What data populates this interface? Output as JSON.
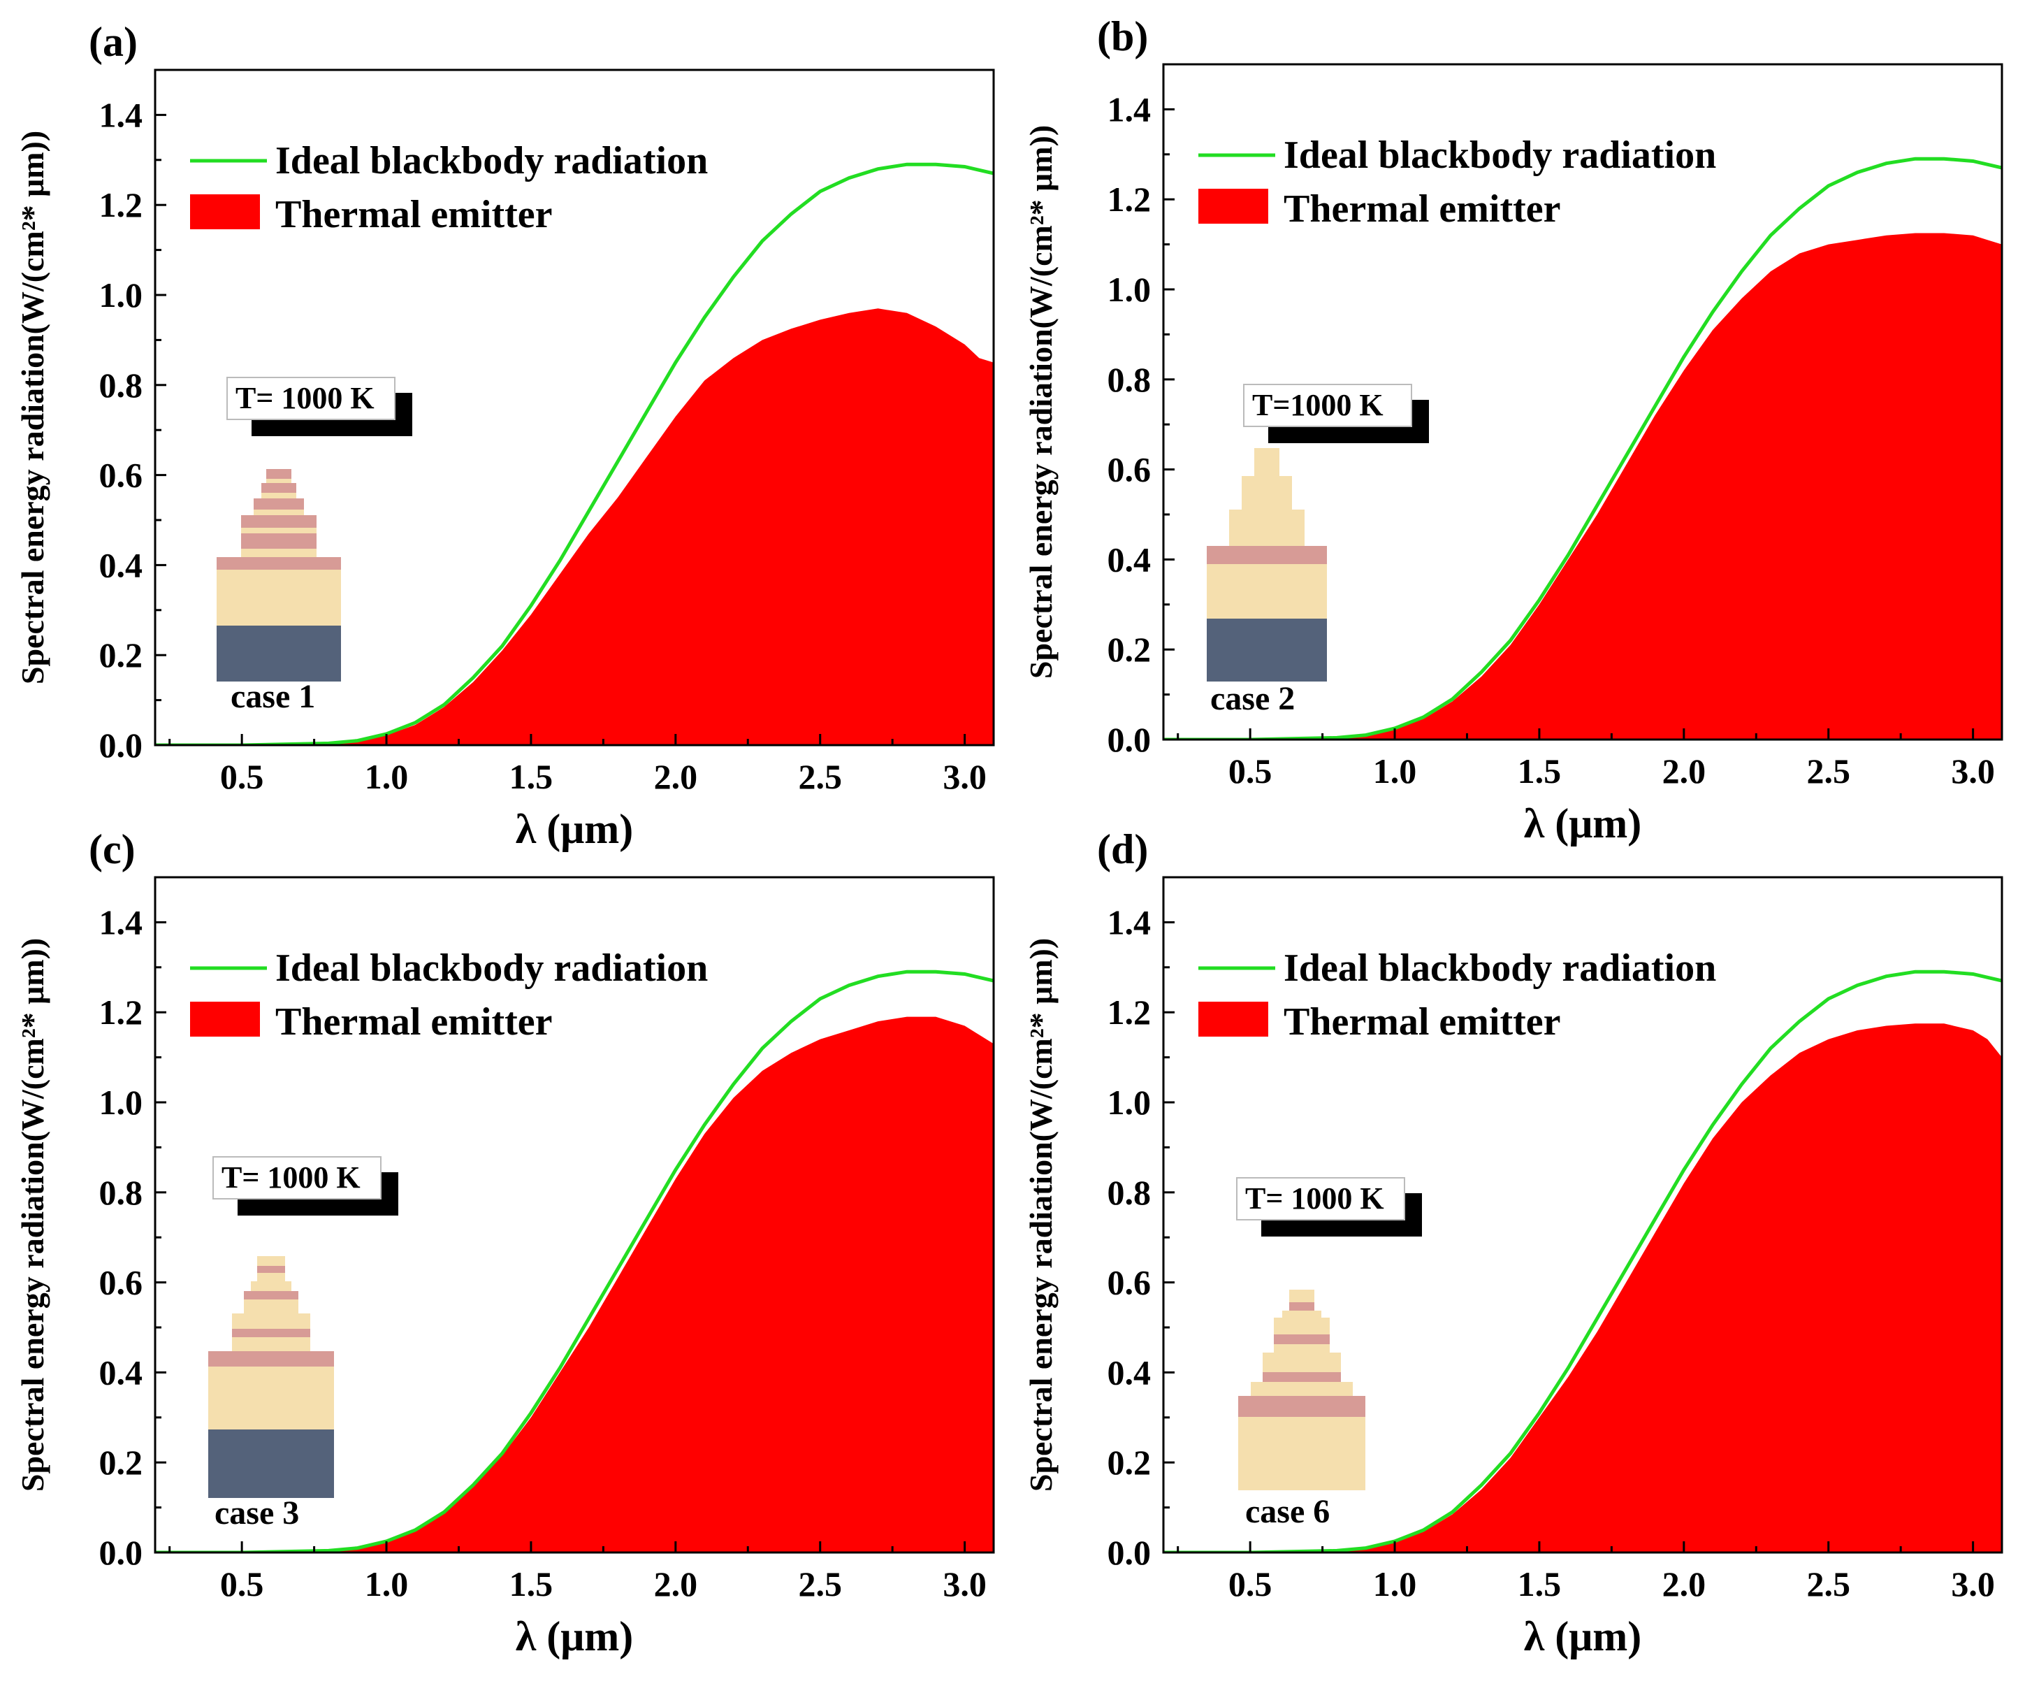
{
  "colors": {
    "blackbody": "#22dd22",
    "emitter": "#ff0000",
    "substrate": "#54627a",
    "dielectric": "#f5dfae",
    "metal_layer": "#d79b96"
  },
  "chart_data": [
    {
      "type": "area",
      "panel_label": "(a)",
      "xlabel": "λ (μm)",
      "ylabel": "Spectral energy radiation(W/(cm²* μm))",
      "xlim": [
        0.2,
        3.1
      ],
      "ylim": [
        0.0,
        1.5
      ],
      "xticks": [
        "0.5",
        "1.0",
        "1.5",
        "2.0",
        "2.5",
        "3.0"
      ],
      "yticks": [
        "0.0",
        "0.2",
        "0.4",
        "0.6",
        "0.8",
        "1.0",
        "1.2",
        "1.4"
      ],
      "legend": [
        "Ideal blackbody radiation",
        "Thermal emitter"
      ],
      "temperature_label": "T= 1000 K",
      "case_label": "case 1",
      "series": [
        {
          "name": "Ideal blackbody radiation",
          "x": [
            0.2,
            0.5,
            0.8,
            0.9,
            1.0,
            1.1,
            1.2,
            1.3,
            1.4,
            1.5,
            1.6,
            1.7,
            1.8,
            1.9,
            2.0,
            2.1,
            2.2,
            2.3,
            2.4,
            2.5,
            2.6,
            2.7,
            2.8,
            2.9,
            3.0,
            3.1
          ],
          "y": [
            0.0,
            0.0,
            0.004,
            0.01,
            0.025,
            0.05,
            0.09,
            0.15,
            0.22,
            0.31,
            0.41,
            0.52,
            0.63,
            0.74,
            0.85,
            0.95,
            1.04,
            1.12,
            1.18,
            1.23,
            1.26,
            1.28,
            1.29,
            1.29,
            1.285,
            1.27
          ]
        },
        {
          "name": "Thermal emitter",
          "x": [
            0.2,
            0.5,
            0.8,
            0.9,
            1.0,
            1.1,
            1.2,
            1.3,
            1.4,
            1.5,
            1.6,
            1.7,
            1.8,
            1.9,
            2.0,
            2.1,
            2.2,
            2.3,
            2.4,
            2.5,
            2.6,
            2.7,
            2.8,
            2.9,
            3.0,
            3.05,
            3.1
          ],
          "y": [
            0.0,
            0.0,
            0.003,
            0.009,
            0.022,
            0.045,
            0.085,
            0.14,
            0.21,
            0.29,
            0.38,
            0.47,
            0.55,
            0.64,
            0.73,
            0.81,
            0.86,
            0.9,
            0.925,
            0.945,
            0.96,
            0.97,
            0.96,
            0.93,
            0.89,
            0.86,
            0.85
          ]
        }
      ]
    },
    {
      "type": "area",
      "panel_label": "(b)",
      "xlabel": "λ (μm)",
      "ylabel": "Spectral energy radiation(W/(cm²* μm))",
      "xlim": [
        0.2,
        3.1
      ],
      "ylim": [
        0.0,
        1.5
      ],
      "xticks": [
        "0.5",
        "1.0",
        "1.5",
        "2.0",
        "2.5",
        "3.0"
      ],
      "yticks": [
        "0.0",
        "0.2",
        "0.4",
        "0.6",
        "0.8",
        "1.0",
        "1.2",
        "1.4"
      ],
      "legend": [
        "Ideal blackbody radiation",
        "Thermal emitter"
      ],
      "temperature_label": "T=1000 K",
      "case_label": "case 2",
      "series": [
        {
          "name": "Ideal blackbody radiation",
          "x": [
            0.2,
            0.5,
            0.8,
            0.9,
            1.0,
            1.1,
            1.2,
            1.3,
            1.4,
            1.5,
            1.6,
            1.7,
            1.8,
            1.9,
            2.0,
            2.1,
            2.2,
            2.3,
            2.4,
            2.5,
            2.6,
            2.7,
            2.8,
            2.9,
            3.0,
            3.1
          ],
          "y": [
            0.0,
            0.0,
            0.004,
            0.01,
            0.025,
            0.05,
            0.09,
            0.15,
            0.22,
            0.31,
            0.41,
            0.52,
            0.63,
            0.74,
            0.85,
            0.95,
            1.04,
            1.12,
            1.18,
            1.23,
            1.26,
            1.28,
            1.29,
            1.29,
            1.285,
            1.27
          ]
        },
        {
          "name": "Thermal emitter",
          "x": [
            0.2,
            0.5,
            0.8,
            0.9,
            1.0,
            1.1,
            1.2,
            1.3,
            1.4,
            1.5,
            1.6,
            1.7,
            1.8,
            1.9,
            2.0,
            2.1,
            2.2,
            2.3,
            2.4,
            2.5,
            2.6,
            2.7,
            2.8,
            2.9,
            3.0,
            3.05,
            3.1
          ],
          "y": [
            0.0,
            0.0,
            0.003,
            0.009,
            0.022,
            0.046,
            0.085,
            0.14,
            0.21,
            0.3,
            0.4,
            0.5,
            0.61,
            0.72,
            0.82,
            0.91,
            0.98,
            1.04,
            1.08,
            1.1,
            1.11,
            1.12,
            1.125,
            1.125,
            1.12,
            1.11,
            1.1
          ]
        }
      ]
    },
    {
      "type": "area",
      "panel_label": "(c)",
      "xlabel": "λ (μm)",
      "ylabel": "Spectral energy radiation(W/(cm²* μm))",
      "xlim": [
        0.2,
        3.1
      ],
      "ylim": [
        0.0,
        1.5
      ],
      "xticks": [
        "0.5",
        "1.0",
        "1.5",
        "2.0",
        "2.5",
        "3.0"
      ],
      "yticks": [
        "0.0",
        "0.2",
        "0.4",
        "0.6",
        "0.8",
        "1.0",
        "1.2",
        "1.4"
      ],
      "legend": [
        "Ideal blackbody radiation",
        "Thermal emitter"
      ],
      "temperature_label": "T= 1000 K",
      "case_label": "case 3",
      "series": [
        {
          "name": "Ideal blackbody radiation",
          "x": [
            0.2,
            0.5,
            0.8,
            0.9,
            1.0,
            1.1,
            1.2,
            1.3,
            1.4,
            1.5,
            1.6,
            1.7,
            1.8,
            1.9,
            2.0,
            2.1,
            2.2,
            2.3,
            2.4,
            2.5,
            2.6,
            2.7,
            2.8,
            2.9,
            3.0,
            3.1
          ],
          "y": [
            0.0,
            0.0,
            0.004,
            0.01,
            0.025,
            0.05,
            0.09,
            0.15,
            0.22,
            0.31,
            0.41,
            0.52,
            0.63,
            0.74,
            0.85,
            0.95,
            1.04,
            1.12,
            1.18,
            1.23,
            1.26,
            1.28,
            1.29,
            1.29,
            1.285,
            1.27
          ]
        },
        {
          "name": "Thermal emitter",
          "x": [
            0.2,
            0.5,
            0.8,
            0.9,
            1.0,
            1.1,
            1.2,
            1.3,
            1.4,
            1.5,
            1.6,
            1.7,
            1.8,
            1.9,
            2.0,
            2.1,
            2.2,
            2.3,
            2.4,
            2.5,
            2.6,
            2.7,
            2.8,
            2.9,
            3.0,
            3.05,
            3.1
          ],
          "y": [
            0.0,
            0.0,
            0.003,
            0.01,
            0.024,
            0.048,
            0.088,
            0.145,
            0.215,
            0.3,
            0.4,
            0.5,
            0.61,
            0.72,
            0.83,
            0.93,
            1.01,
            1.07,
            1.11,
            1.14,
            1.16,
            1.18,
            1.19,
            1.19,
            1.17,
            1.15,
            1.13
          ]
        }
      ]
    },
    {
      "type": "area",
      "panel_label": "(d)",
      "xlabel": "λ (μm)",
      "ylabel": "Spectral energy radiation(W/(cm²* μm))",
      "xlim": [
        0.2,
        3.1
      ],
      "ylim": [
        0.0,
        1.5
      ],
      "xticks": [
        "0.5",
        "1.0",
        "1.5",
        "2.0",
        "2.5",
        "3.0"
      ],
      "yticks": [
        "0.0",
        "0.2",
        "0.4",
        "0.6",
        "0.8",
        "1.0",
        "1.2",
        "1.4"
      ],
      "legend": [
        "Ideal blackbody radiation",
        "Thermal emitter"
      ],
      "temperature_label": "T= 1000 K",
      "case_label": "case 6",
      "series": [
        {
          "name": "Ideal blackbody radiation",
          "x": [
            0.2,
            0.5,
            0.8,
            0.9,
            1.0,
            1.1,
            1.2,
            1.3,
            1.4,
            1.5,
            1.6,
            1.7,
            1.8,
            1.9,
            2.0,
            2.1,
            2.2,
            2.3,
            2.4,
            2.5,
            2.6,
            2.7,
            2.8,
            2.9,
            3.0,
            3.1
          ],
          "y": [
            0.0,
            0.0,
            0.004,
            0.01,
            0.025,
            0.05,
            0.09,
            0.15,
            0.22,
            0.31,
            0.41,
            0.52,
            0.63,
            0.74,
            0.85,
            0.95,
            1.04,
            1.12,
            1.18,
            1.23,
            1.26,
            1.28,
            1.29,
            1.29,
            1.285,
            1.27
          ]
        },
        {
          "name": "Thermal emitter",
          "x": [
            0.2,
            0.5,
            0.8,
            0.9,
            1.0,
            1.1,
            1.2,
            1.3,
            1.4,
            1.5,
            1.6,
            1.7,
            1.8,
            1.9,
            2.0,
            2.1,
            2.2,
            2.3,
            2.4,
            2.5,
            2.6,
            2.7,
            2.8,
            2.9,
            3.0,
            3.05,
            3.1
          ],
          "y": [
            0.0,
            0.0,
            0.003,
            0.009,
            0.022,
            0.046,
            0.085,
            0.14,
            0.21,
            0.3,
            0.39,
            0.49,
            0.6,
            0.71,
            0.82,
            0.92,
            1.0,
            1.06,
            1.11,
            1.14,
            1.16,
            1.17,
            1.175,
            1.175,
            1.16,
            1.14,
            1.1
          ]
        }
      ]
    }
  ]
}
